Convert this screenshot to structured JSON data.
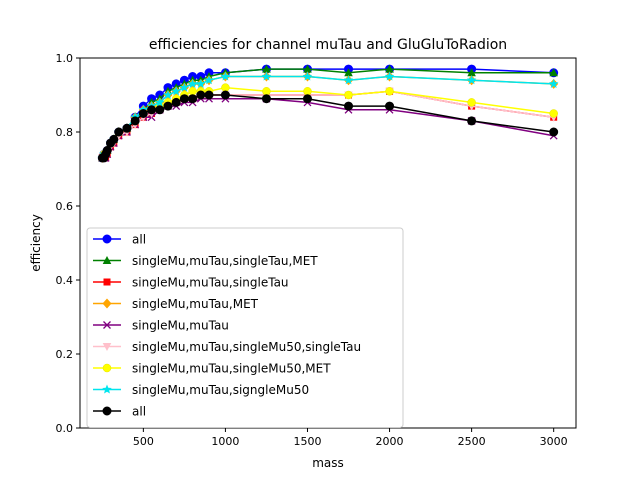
{
  "chart_data": {
    "type": "line",
    "title": "efficiencies for channel muTau and GluGluToRadion",
    "xlabel": "mass",
    "ylabel": "efficiency",
    "xlim": [
      114,
      3136
    ],
    "ylim": [
      0.0,
      1.0
    ],
    "xticks": [
      500,
      1000,
      1500,
      2000,
      2500,
      3000
    ],
    "yticks": [
      0.0,
      0.2,
      0.4,
      0.6,
      0.8,
      1.0
    ],
    "xtick_labels": [
      "500",
      "1000",
      "1500",
      "2000",
      "2500",
      "3000"
    ],
    "ytick_labels": [
      "0.0",
      "0.2",
      "0.4",
      "0.6",
      "0.8",
      "1.0"
    ],
    "grid": false,
    "legend_position": "lower-left",
    "x": [
      250,
      260,
      270,
      280,
      300,
      320,
      350,
      400,
      450,
      500,
      550,
      600,
      650,
      700,
      750,
      800,
      850,
      900,
      1000,
      1250,
      1500,
      1750,
      2000,
      2500,
      3000
    ],
    "series": [
      {
        "name": "all",
        "color": "#0000ff",
        "marker": "circle",
        "values": [
          0.73,
          0.74,
          0.74,
          0.75,
          0.77,
          0.78,
          0.8,
          0.81,
          0.84,
          0.87,
          0.89,
          0.9,
          0.92,
          0.93,
          0.94,
          0.95,
          0.95,
          0.96,
          0.96,
          0.97,
          0.97,
          0.97,
          0.97,
          0.97,
          0.96
        ]
      },
      {
        "name": "singleMu,muTau,singleTau,MET",
        "color": "#008000",
        "marker": "triangle-up",
        "values": [
          0.73,
          0.74,
          0.74,
          0.75,
          0.77,
          0.78,
          0.8,
          0.81,
          0.84,
          0.86,
          0.88,
          0.89,
          0.91,
          0.92,
          0.93,
          0.94,
          0.94,
          0.95,
          0.96,
          0.97,
          0.97,
          0.96,
          0.97,
          0.96,
          0.96
        ]
      },
      {
        "name": "singleMu,muTau,singleTau",
        "color": "#ff0000",
        "marker": "square",
        "values": [
          0.73,
          0.73,
          0.73,
          0.74,
          0.76,
          0.77,
          0.79,
          0.8,
          0.82,
          0.84,
          0.85,
          0.86,
          0.87,
          0.88,
          0.89,
          0.89,
          0.9,
          0.9,
          0.9,
          0.9,
          0.9,
          0.9,
          0.91,
          0.87,
          0.84
        ]
      },
      {
        "name": "singleMu,muTau,MET",
        "color": "#ffa500",
        "marker": "diamond",
        "values": [
          0.73,
          0.74,
          0.74,
          0.75,
          0.77,
          0.78,
          0.8,
          0.81,
          0.84,
          0.86,
          0.87,
          0.88,
          0.9,
          0.91,
          0.92,
          0.93,
          0.93,
          0.94,
          0.95,
          0.95,
          0.95,
          0.94,
          0.95,
          0.94,
          0.93
        ]
      },
      {
        "name": "singleMu,muTau",
        "color": "#800080",
        "marker": "x",
        "values": [
          0.73,
          0.73,
          0.73,
          0.74,
          0.76,
          0.77,
          0.79,
          0.8,
          0.82,
          0.84,
          0.84,
          0.86,
          0.87,
          0.87,
          0.88,
          0.88,
          0.89,
          0.89,
          0.89,
          0.89,
          0.88,
          0.86,
          0.86,
          0.83,
          0.79
        ]
      },
      {
        "name": "singleMu,muTau,singleMu50,singleTau",
        "color": "#ffc0cb",
        "marker": "triangle-down",
        "values": [
          0.73,
          0.73,
          0.73,
          0.74,
          0.76,
          0.77,
          0.79,
          0.8,
          0.82,
          0.84,
          0.85,
          0.86,
          0.87,
          0.88,
          0.89,
          0.89,
          0.9,
          0.9,
          0.9,
          0.9,
          0.9,
          0.9,
          0.91,
          0.87,
          0.84
        ]
      },
      {
        "name": "singleMu,muTau,singleMu50,MET",
        "color": "#ffff00",
        "marker": "circle-small",
        "values": [
          0.73,
          0.74,
          0.74,
          0.75,
          0.77,
          0.78,
          0.8,
          0.81,
          0.83,
          0.85,
          0.86,
          0.87,
          0.88,
          0.89,
          0.9,
          0.91,
          0.91,
          0.91,
          0.92,
          0.91,
          0.91,
          0.9,
          0.91,
          0.88,
          0.85
        ]
      },
      {
        "name": "singleMu,muTau,signgleMu50",
        "color": "#00e5ee",
        "marker": "star",
        "values": [
          0.73,
          0.74,
          0.74,
          0.75,
          0.77,
          0.78,
          0.8,
          0.81,
          0.84,
          0.86,
          0.87,
          0.88,
          0.9,
          0.91,
          0.92,
          0.93,
          0.93,
          0.94,
          0.95,
          0.95,
          0.95,
          0.94,
          0.95,
          0.94,
          0.93
        ]
      },
      {
        "name": "all",
        "color": "#000000",
        "marker": "circle",
        "values": [
          0.73,
          0.73,
          0.74,
          0.75,
          0.77,
          0.78,
          0.8,
          0.81,
          0.83,
          0.85,
          0.86,
          0.86,
          0.87,
          0.88,
          0.89,
          0.89,
          0.9,
          0.9,
          0.9,
          0.89,
          0.89,
          0.87,
          0.87,
          0.83,
          0.8
        ]
      }
    ]
  }
}
